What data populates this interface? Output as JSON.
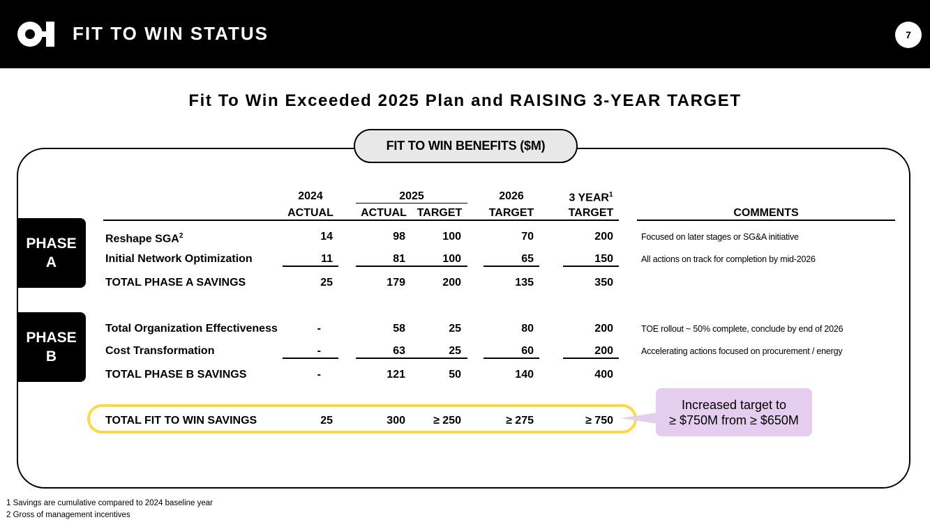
{
  "header": {
    "title": "FIT TO WIN STATUS",
    "page_number": "7"
  },
  "subtitle": "Fit To Win Exceeded 2025 Plan and RAISING 3-YEAR TARGET",
  "panel_title": "FIT TO WIN BENEFITS ($M)",
  "columns": {
    "y2024": "2024",
    "y2024_sub": "ACTUAL",
    "y2025": "2025",
    "y2025_actual": "ACTUAL",
    "y2025_target": "TARGET",
    "y2026": "2026",
    "y2026_sub": "TARGET",
    "y3": "3 YEAR",
    "y3_note": "1",
    "y3_sub": "TARGET",
    "comments": "COMMENTS"
  },
  "phase_a": {
    "label_line1": "PHASE",
    "label_line2": "A",
    "rows": [
      {
        "name": "Reshape SGA",
        "note": "2",
        "a2024": "14",
        "a2025": "98",
        "t2025": "100",
        "t2026": "70",
        "t3": "200",
        "comment": "Focused on  later stages or SG&A initiative"
      },
      {
        "name": "Initial Network Optimization",
        "a2024": "11",
        "a2025": "81",
        "t2025": "100",
        "t2026": "65",
        "t3": "150",
        "comment": "All actions on track for completion by mid-2026"
      }
    ],
    "total": {
      "name": "TOTAL PHASE A SAVINGS",
      "a2024": "25",
      "a2025": "179",
      "t2025": "200",
      "t2026": "135",
      "t3": "350"
    }
  },
  "phase_b": {
    "label_line1": "PHASE",
    "label_line2": "B",
    "rows": [
      {
        "name": "Total Organization Effectiveness",
        "a2024": "-",
        "a2025": "58",
        "t2025": "25",
        "t2026": "80",
        "t3": "200",
        "comment": "TOE rollout ~ 50% complete, conclude by end of 2026"
      },
      {
        "name": "Cost Transformation",
        "a2024": "-",
        "a2025": "63",
        "t2025": "25",
        "t2026": "60",
        "t3": "200",
        "comment": "Accelerating actions focused on procurement / energy"
      }
    ],
    "total": {
      "name": "TOTAL PHASE B SAVINGS",
      "a2024": "-",
      "a2025": "121",
      "t2025": "50",
      "t2026": "140",
      "t3": "400"
    }
  },
  "grand_total": {
    "name": "TOTAL FIT TO WIN SAVINGS",
    "a2024": "25",
    "a2025": "300",
    "t2025": "≥ 250",
    "t2026": "≥ 275",
    "t3": "≥ 750"
  },
  "callout": {
    "line1": "Increased target to",
    "line2": "≥ $750M from ≥ $650M"
  },
  "footnotes": [
    "1 Savings are cumulative compared to 2024 baseline year",
    "2 Gross of management incentives"
  ],
  "colors": {
    "highlight": "#ffd84a",
    "callout_bg": "#e4cdef",
    "header_bg": "#000000"
  }
}
